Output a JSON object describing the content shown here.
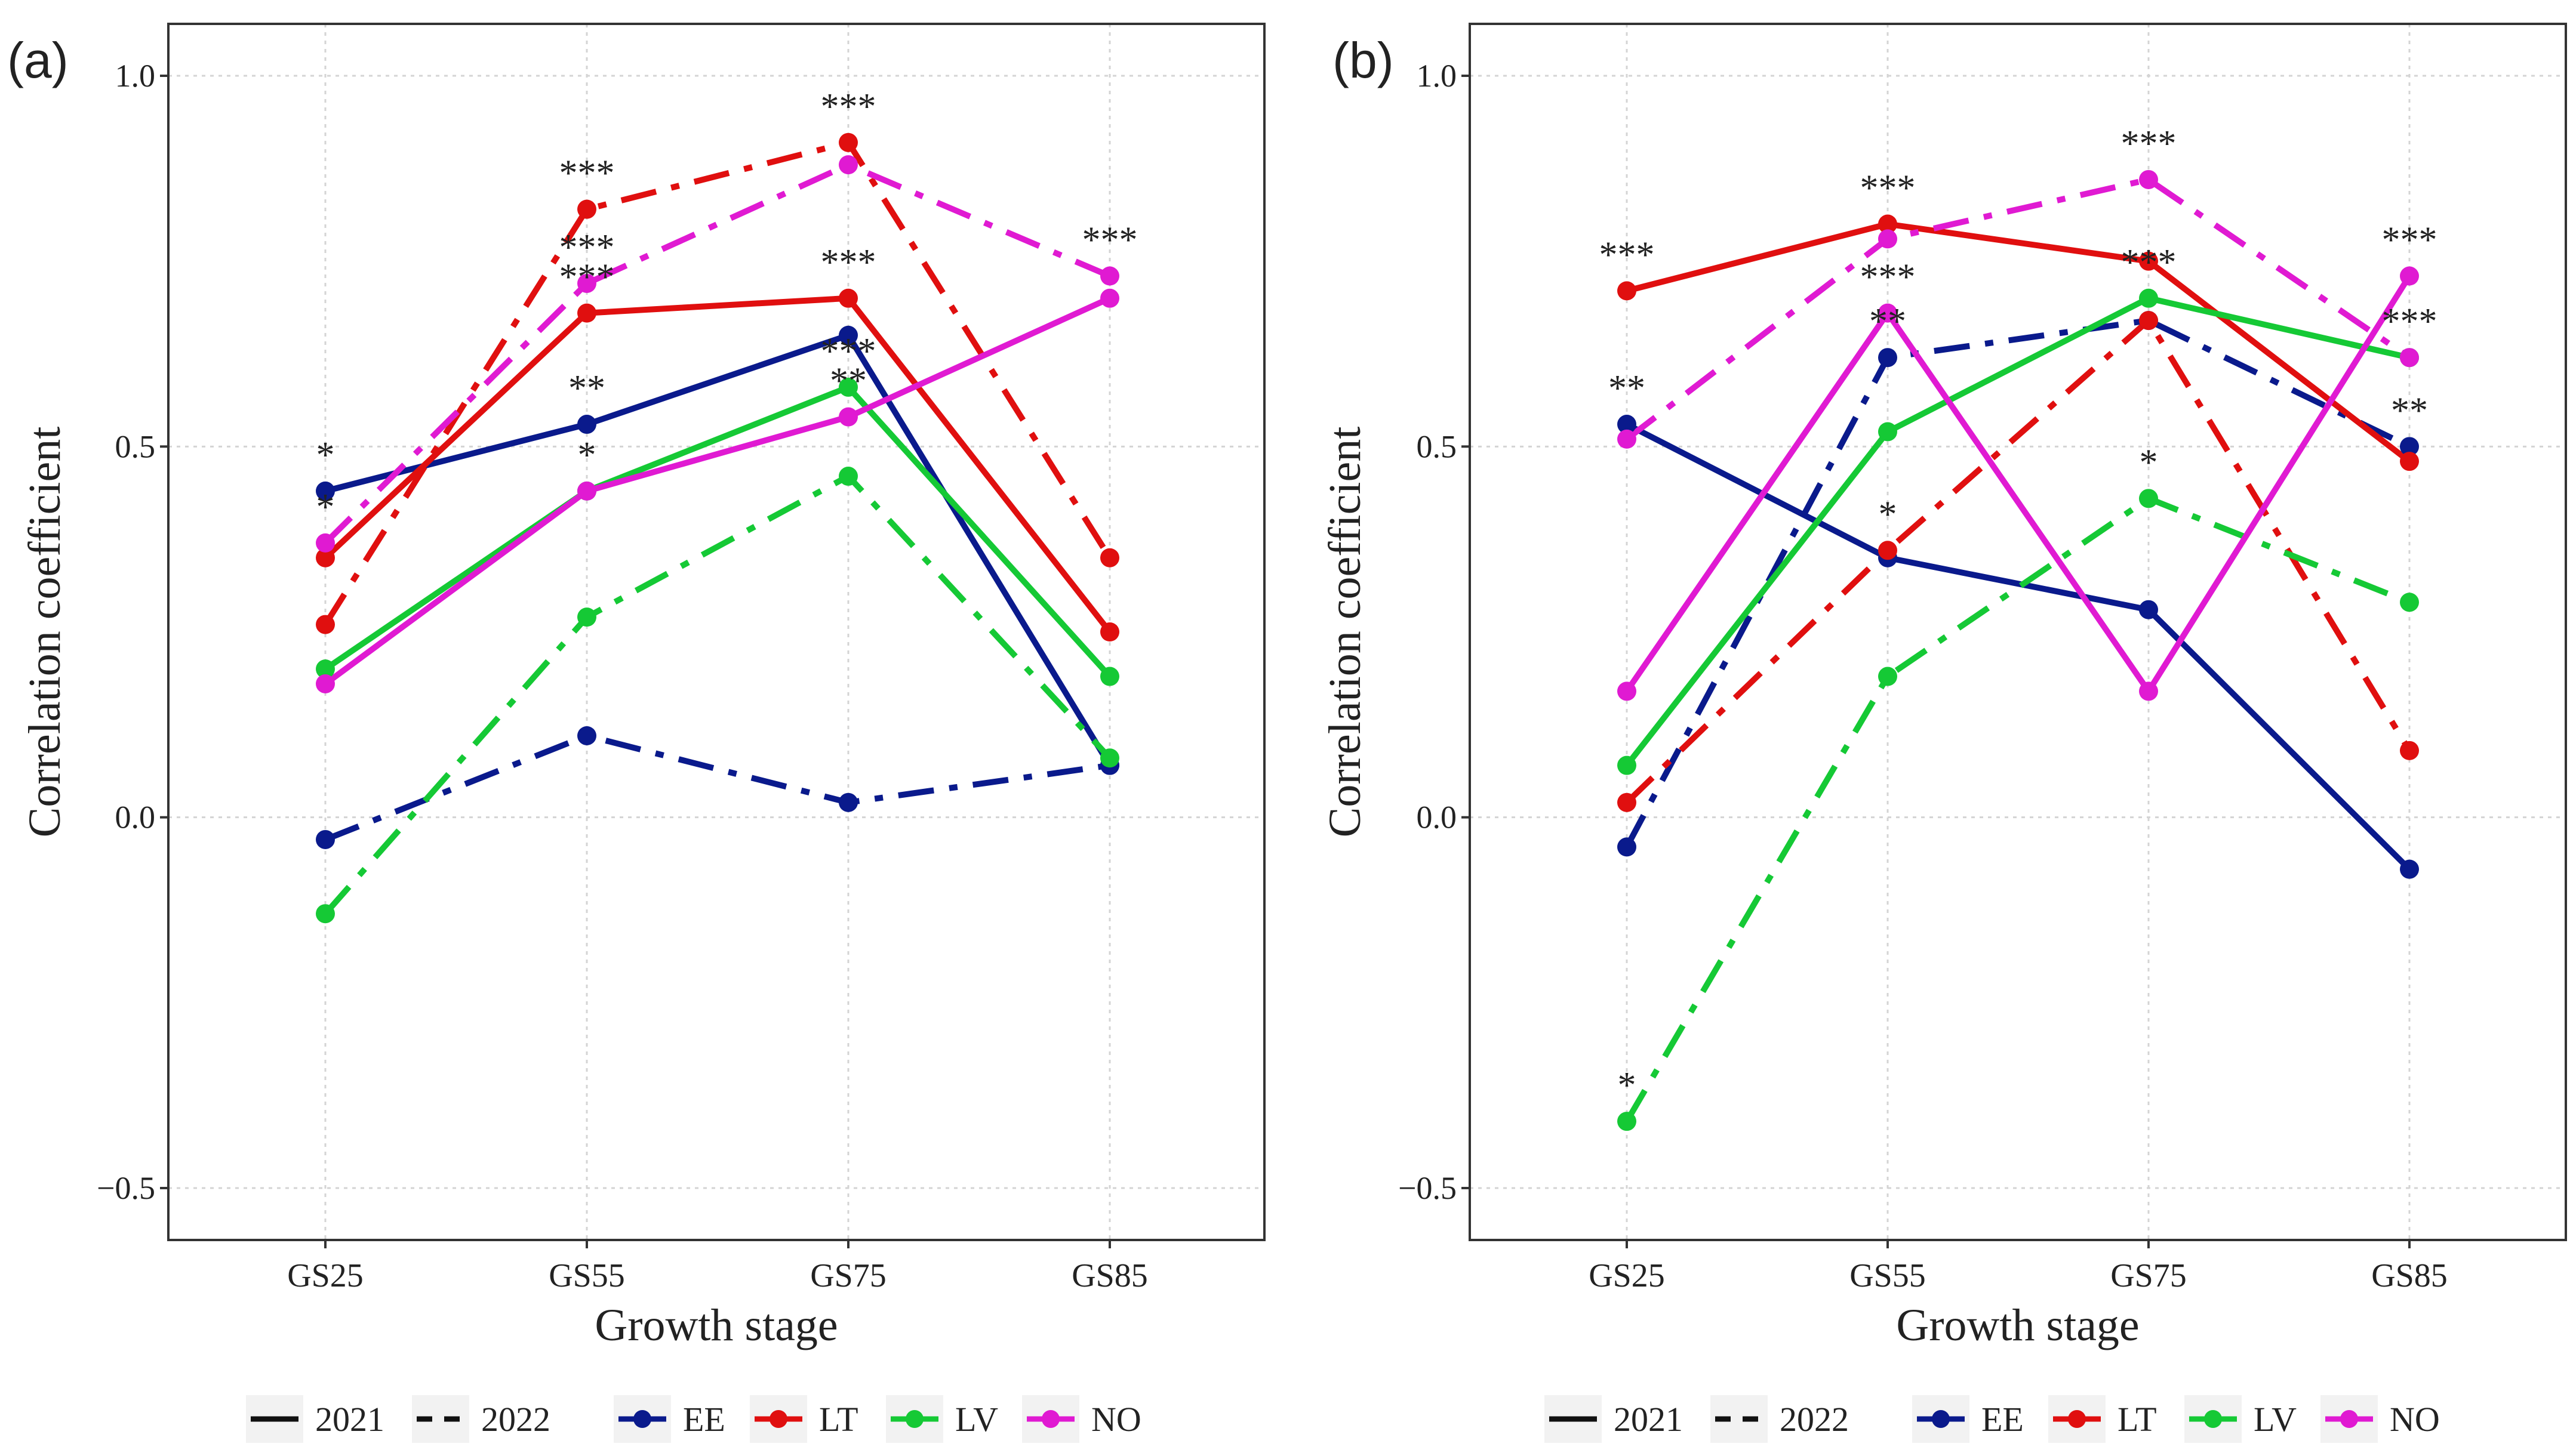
{
  "figure": {
    "legend_linetype": [
      {
        "label": "2021",
        "style": "solid"
      },
      {
        "label": "2022",
        "style": "dashed"
      }
    ],
    "legend_color": [
      {
        "label": "EE",
        "color": "#0a1a8c"
      },
      {
        "label": "LT",
        "color": "#e00f0f"
      },
      {
        "label": "LV",
        "color": "#15c935"
      },
      {
        "label": "NO",
        "color": "#e01ad2"
      }
    ]
  },
  "chart_data": [
    {
      "type": "line",
      "panel": "(a)",
      "xlabel": "Growth stage",
      "ylabel": "Correlation coefficient",
      "categories": [
        "GS25",
        "GS55",
        "GS75",
        "GS85"
      ],
      "ylim": [
        -0.57,
        1.07
      ],
      "yticks": [
        -0.5,
        0.0,
        0.5,
        1.0
      ],
      "ytick_labels": [
        "−0.5",
        "0.0",
        "0.5",
        "1.0"
      ],
      "grid": true,
      "legend_position": "bottom",
      "series": [
        {
          "name": "EE",
          "year": "2021",
          "color": "#0a1a8c",
          "values": [
            0.44,
            0.53,
            0.65,
            0.07
          ],
          "sig": [
            "*",
            "**",
            "",
            ""
          ]
        },
        {
          "name": "EE",
          "year": "2022",
          "color": "#0a1a8c",
          "values": [
            -0.03,
            0.11,
            0.02,
            0.07
          ],
          "sig": [
            "",
            "",
            "",
            ""
          ]
        },
        {
          "name": "LT",
          "year": "2021",
          "color": "#e00f0f",
          "values": [
            0.35,
            0.68,
            0.7,
            0.25
          ],
          "sig": [
            "",
            "***",
            "***",
            ""
          ]
        },
        {
          "name": "LT",
          "year": "2022",
          "color": "#e00f0f",
          "values": [
            0.26,
            0.82,
            0.91,
            0.35
          ],
          "sig": [
            "",
            "***",
            "***",
            ""
          ]
        },
        {
          "name": "LV",
          "year": "2021",
          "color": "#15c935",
          "values": [
            0.2,
            0.44,
            0.58,
            0.19
          ],
          "sig": [
            "",
            "",
            "***",
            ""
          ]
        },
        {
          "name": "LV",
          "year": "2022",
          "color": "#15c935",
          "values": [
            -0.13,
            0.27,
            0.46,
            0.08
          ],
          "sig": [
            "",
            "",
            "",
            ""
          ]
        },
        {
          "name": "NO",
          "year": "2021",
          "color": "#e01ad2",
          "values": [
            0.18,
            0.44,
            0.54,
            0.7
          ],
          "sig": [
            "",
            "*",
            "**",
            ""
          ]
        },
        {
          "name": "NO",
          "year": "2022",
          "color": "#e01ad2",
          "values": [
            0.37,
            0.72,
            0.88,
            0.73
          ],
          "sig": [
            "*",
            "***",
            "",
            "***"
          ]
        }
      ]
    },
    {
      "type": "line",
      "panel": "(b)",
      "xlabel": "Growth stage",
      "ylabel": "Correlation coefficient",
      "categories": [
        "GS25",
        "GS55",
        "GS75",
        "GS85"
      ],
      "ylim": [
        -0.57,
        1.07
      ],
      "yticks": [
        -0.5,
        0.0,
        0.5,
        1.0
      ],
      "ytick_labels": [
        "−0.5",
        "0.0",
        "0.5",
        "1.0"
      ],
      "grid": true,
      "legend_position": "bottom",
      "series": [
        {
          "name": "EE",
          "year": "2021",
          "color": "#0a1a8c",
          "values": [
            0.53,
            0.35,
            0.28,
            -0.07
          ],
          "sig": [
            "**",
            "",
            "",
            ""
          ]
        },
        {
          "name": "EE",
          "year": "2022",
          "color": "#0a1a8c",
          "values": [
            -0.04,
            0.62,
            0.67,
            0.5
          ],
          "sig": [
            "",
            "**",
            "",
            "**"
          ]
        },
        {
          "name": "LT",
          "year": "2021",
          "color": "#e00f0f",
          "values": [
            0.71,
            0.8,
            0.75,
            0.48
          ],
          "sig": [
            "***",
            "***",
            "",
            ""
          ]
        },
        {
          "name": "LT",
          "year": "2022",
          "color": "#e00f0f",
          "values": [
            0.02,
            0.36,
            0.67,
            0.09
          ],
          "sig": [
            "",
            "*",
            "",
            ""
          ]
        },
        {
          "name": "LV",
          "year": "2021",
          "color": "#15c935",
          "values": [
            0.07,
            0.52,
            0.7,
            0.62
          ],
          "sig": [
            "",
            "",
            "***",
            "***"
          ]
        },
        {
          "name": "LV",
          "year": "2022",
          "color": "#15c935",
          "values": [
            -0.41,
            0.19,
            0.43,
            0.29
          ],
          "sig": [
            "*",
            "",
            "*",
            ""
          ]
        },
        {
          "name": "NO",
          "year": "2021",
          "color": "#e01ad2",
          "values": [
            0.17,
            0.68,
            0.17,
            0.73
          ],
          "sig": [
            "",
            "***",
            "",
            "***"
          ]
        },
        {
          "name": "NO",
          "year": "2022",
          "color": "#e01ad2",
          "values": [
            0.51,
            0.78,
            0.86,
            0.62
          ],
          "sig": [
            "",
            "",
            "***",
            ""
          ]
        }
      ]
    }
  ]
}
